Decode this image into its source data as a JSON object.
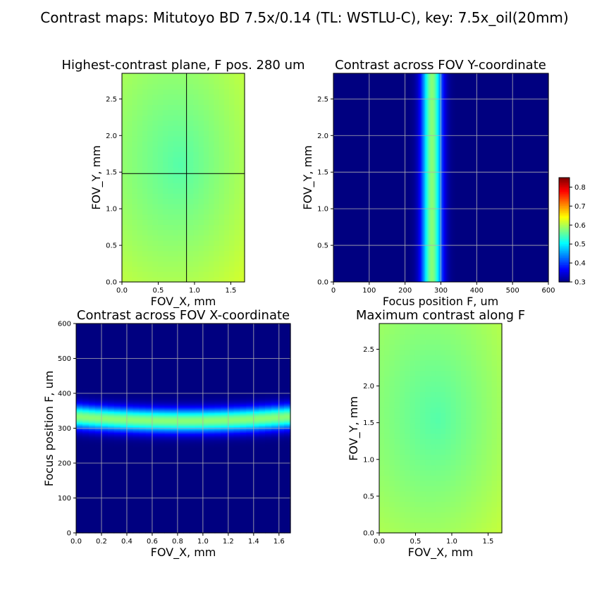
{
  "figure": {
    "title": "Contrast maps: Mitutoyo BD 7.5x/0.14 (TL: WSTLU-C), key: 7.5x_oil(20mm)"
  },
  "colors": {
    "colormap": "jet",
    "grid": "#b0b0b0",
    "crosshair": "#000000"
  },
  "chart_data": [
    {
      "id": "highest",
      "type": "heatmap",
      "title": "Highest-contrast plane, F pos. 280 um",
      "xlabel": "FOV_X, mm",
      "ylabel": "FOV_Y, mm",
      "xlim": [
        0,
        1.69
      ],
      "ylim": [
        0,
        2.85
      ],
      "xticks": [
        0.0,
        0.5,
        1.0,
        1.5
      ],
      "yticks": [
        0.0,
        0.5,
        1.0,
        1.5,
        2.0,
        2.5
      ],
      "tick_decimals": 1,
      "grid": false,
      "crosshair": {
        "x": 0.89,
        "y": 1.48
      },
      "value_model": {
        "base": 0.55,
        "center": [
          0.8,
          1.6
        ],
        "radial_gain": 0.04
      }
    },
    {
      "id": "across_y",
      "type": "heatmap",
      "title": "Contrast across FOV Y-coordinate",
      "xlabel": "Focus position F, um",
      "ylabel": "FOV_Y, mm",
      "xlim": [
        0,
        600
      ],
      "ylim": [
        0,
        2.85
      ],
      "xticks": [
        0,
        100,
        200,
        300,
        400,
        500,
        600
      ],
      "yticks": [
        0.0,
        0.5,
        1.0,
        1.5,
        2.0,
        2.5
      ],
      "xtick_decimals": 0,
      "ytick_decimals": 1,
      "grid": true,
      "band": {
        "peak_focus_um": 275,
        "half_width_um": 42,
        "peak_contrast": 0.58,
        "floor": 0.3
      },
      "colorbar": {
        "min": 0.3,
        "max": 0.85,
        "ticks": [
          0.3,
          0.4,
          0.5,
          0.6,
          0.7,
          0.8
        ]
      }
    },
    {
      "id": "across_x",
      "type": "heatmap",
      "title": "Contrast across FOV X-coordinate",
      "xlabel": "FOV_X, mm",
      "ylabel": "Focus position F, um",
      "xlim": [
        0,
        1.69
      ],
      "ylim": [
        0,
        600
      ],
      "xticks": [
        0.0,
        0.2,
        0.4,
        0.6,
        0.8,
        1.0,
        1.2,
        1.4,
        1.6
      ],
      "yticks": [
        0,
        100,
        200,
        300,
        400,
        500,
        600
      ],
      "xtick_decimals": 1,
      "ytick_decimals": 0,
      "grid": true,
      "band": {
        "peak_focus_um": 322,
        "half_width_um": 50,
        "edge_rise_um": 12,
        "peak_contrast": 0.58,
        "floor": 0.3
      }
    },
    {
      "id": "maximum",
      "type": "heatmap",
      "title": "Maximum contrast along F",
      "xlabel": "FOV_X, mm",
      "ylabel": "FOV_Y, mm",
      "xlim": [
        0,
        1.69
      ],
      "ylim": [
        0,
        2.85
      ],
      "xticks": [
        0.0,
        0.5,
        1.0,
        1.5
      ],
      "yticks": [
        0.0,
        0.5,
        1.0,
        1.5,
        2.0,
        2.5
      ],
      "tick_decimals": 1,
      "grid": false,
      "value_model": {
        "base": 0.55,
        "center": [
          0.8,
          1.55
        ],
        "radial_gain": 0.035
      }
    }
  ]
}
